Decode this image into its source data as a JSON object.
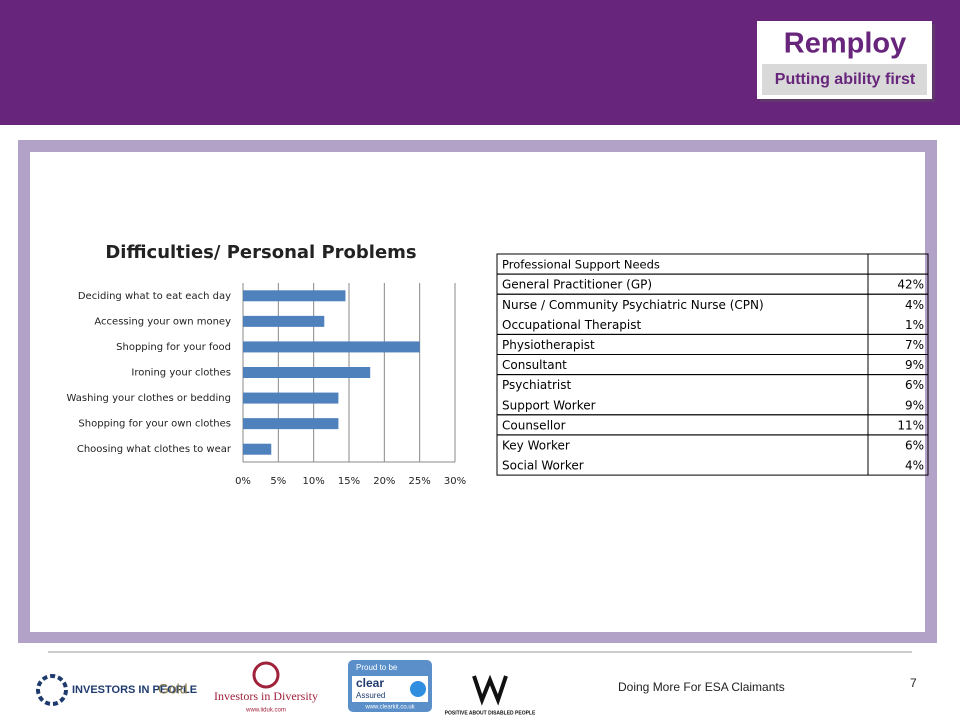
{
  "header": {
    "logo_name": "Remploy",
    "logo_tagline": "Putting ability first"
  },
  "chart_data": {
    "type": "bar",
    "orientation": "horizontal",
    "title": "Difficulties/ Personal Problems",
    "categories": [
      "Deciding what to eat each day",
      "Accessing your own money",
      "Shopping for your food",
      "Ironing your clothes",
      "Washing your clothes or bedding",
      "Shopping for your own clothes",
      "Choosing what clothes to wear"
    ],
    "values": [
      14.5,
      11.5,
      25,
      18,
      13.5,
      13.5,
      4
    ],
    "color": "#4f81bd",
    "xlim": [
      0,
      30
    ],
    "xticks": [
      {
        "value": 0,
        "label": "0%"
      },
      {
        "value": 5,
        "label": "5%"
      },
      {
        "value": 10,
        "label": "10%"
      },
      {
        "value": 15,
        "label": "15%"
      },
      {
        "value": 20,
        "label": "20%"
      },
      {
        "value": 25,
        "label": "25%"
      },
      {
        "value": 30,
        "label": "30%"
      }
    ],
    "grid": true
  },
  "table": {
    "title": "Professional Support Needs",
    "groups": [
      {
        "rows": [
          [
            "General Practitioner (GP)",
            "42%"
          ]
        ]
      },
      {
        "rows": [
          [
            "Nurse / Community Psychiatric Nurse (CPN)",
            "4%"
          ],
          [
            "Occupational Therapist",
            "1%"
          ]
        ]
      },
      {
        "rows": [
          [
            "Physiotherapist",
            "7%"
          ]
        ]
      },
      {
        "rows": [
          [
            "Consultant",
            "9%"
          ]
        ]
      },
      {
        "rows": [
          [
            "Psychiatrist",
            "6%"
          ],
          [
            "Support Worker",
            "9%"
          ]
        ]
      },
      {
        "rows": [
          [
            "Counsellor",
            "11%"
          ]
        ]
      },
      {
        "rows": [
          [
            "Key Worker",
            "6%"
          ],
          [
            "Social Worker",
            "4%"
          ]
        ]
      }
    ]
  },
  "footer": {
    "logos": {
      "iip": "INVESTORS IN PEOPLE",
      "iip_level": "Gold",
      "iid": "Investors in Diversity",
      "iid_url": "www.iiduk.com",
      "clear_top": "Proud to be",
      "clear_name": "clear",
      "clear_sub": "Assured",
      "clear_url": "www.clearkit.co.uk",
      "disability": "POSITIVE ABOUT DISABLED PEOPLE"
    },
    "caption": "Doing More For ESA Claimants",
    "page_number": "7"
  }
}
